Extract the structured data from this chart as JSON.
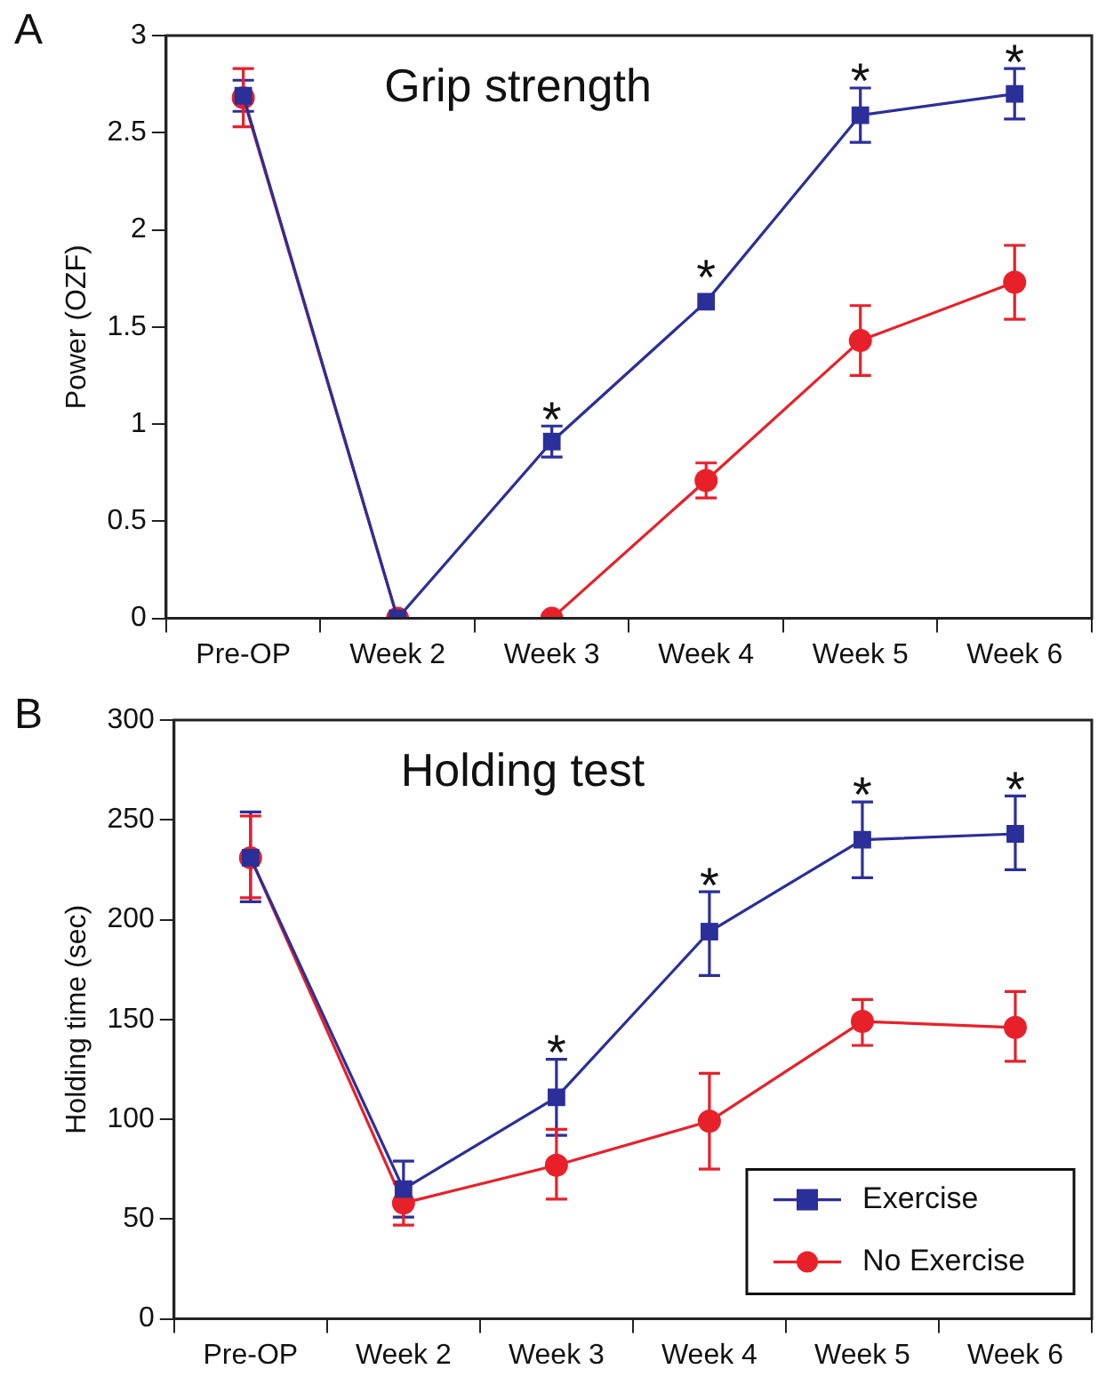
{
  "chart_data": [
    {
      "type": "line",
      "title": "Grip strength",
      "ylabel": "Power (OZF)",
      "categories": [
        "Pre-OP",
        "Week 2",
        "Week 3",
        "Week 4",
        "Week 5",
        "Week 6"
      ],
      "series": [
        {
          "color": "#2b2f9a",
          "marker": "square",
          "values": [
            2.69,
            0,
            0.91,
            1.63,
            2.59,
            2.7
          ],
          "errors": [
            [
              2.61,
              2.77
            ],
            null,
            [
              0.83,
              0.99
            ],
            null,
            [
              2.45,
              2.73
            ],
            [
              2.57,
              2.83
            ]
          ],
          "value_labels": [
            null,
            null,
            "*",
            "*",
            "*",
            "*"
          ]
        },
        {
          "color": "#e8202a",
          "marker": "circle",
          "values": [
            2.68,
            0,
            0,
            0.71,
            1.43,
            1.73
          ],
          "errors": [
            [
              2.53,
              2.83
            ],
            null,
            null,
            [
              0.62,
              0.8
            ],
            [
              1.25,
              1.61
            ],
            [
              1.54,
              1.92
            ]
          ]
        }
      ],
      "ylim": [
        0,
        3
      ],
      "yticks": [
        0,
        0.5,
        1,
        1.5,
        2,
        2.5,
        3
      ],
      "grid": false,
      "legend": false,
      "line_style": "solid",
      "annotations": [
        "A"
      ]
    },
    {
      "type": "line",
      "title": "Holding test",
      "ylabel": "Holding time (sec)",
      "categories": [
        "Pre-OP",
        "Week 2",
        "Week 3",
        "Week 4",
        "Week 5",
        "Week 6"
      ],
      "series": [
        {
          "name": "Exercise",
          "color": "#2b2f9a",
          "marker": "square",
          "values": [
            231,
            65,
            111,
            194,
            240,
            243
          ],
          "errors": [
            [
              209,
              254
            ],
            [
              51,
              79
            ],
            [
              92,
              130
            ],
            [
              172,
              214
            ],
            [
              221,
              259
            ],
            [
              225,
              262
            ]
          ],
          "value_labels": [
            null,
            null,
            "*",
            "*",
            "*",
            "*"
          ]
        },
        {
          "name": "No Exercise",
          "color": "#e8202a",
          "marker": "circle",
          "values": [
            231,
            58,
            77,
            99,
            149,
            146
          ],
          "errors": [
            [
              211,
              252
            ],
            [
              47,
              68
            ],
            [
              60,
              95
            ],
            [
              75,
              123
            ],
            [
              137,
              160
            ],
            [
              129,
              164
            ]
          ]
        }
      ],
      "ylim": [
        0,
        300
      ],
      "yticks": [
        0,
        50,
        100,
        150,
        200,
        250,
        300
      ],
      "grid": false,
      "legend": "bottom right",
      "line_style": "solid",
      "annotations": [
        "B"
      ]
    }
  ]
}
